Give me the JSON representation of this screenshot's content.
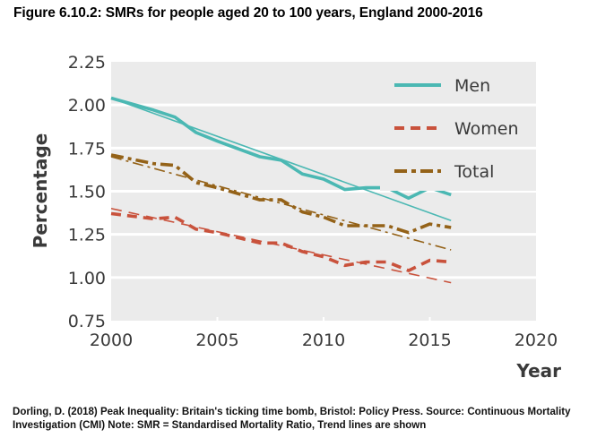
{
  "figure": {
    "title": "Figure 6.10.2: SMRs for people aged 20 to 100 years, England 2000-2016",
    "caption": "Dorling, D. (2018) Peak Inequality: Britain's ticking time bomb, Bristol: Policy Press. Source: Continuous Mortality Investigation (CMI) Note: SMR = Standardised Mortality Ratio, Trend lines are shown"
  },
  "chart_data": {
    "type": "line",
    "title": "Figure 6.10.2: SMRs for people aged 20 to 100 years, England 2000-2016",
    "xlabel": "Year",
    "ylabel": "Percentage",
    "xlim": [
      2000,
      2020
    ],
    "ylim": [
      0.75,
      2.25
    ],
    "xticks": [
      2000,
      2005,
      2010,
      2015,
      2020
    ],
    "xtick_labels": [
      "2000",
      "2005",
      "2010",
      "2015",
      "2020"
    ],
    "yticks": [
      0.75,
      1.0,
      1.25,
      1.5,
      1.75,
      2.0,
      2.25
    ],
    "ytick_labels": [
      "0.75",
      "1.00",
      "1.25",
      "1.50",
      "1.75",
      "2.00",
      "2.25"
    ],
    "grid": "horizontal",
    "legend_position": "top-right",
    "x": [
      2000,
      2002,
      2003,
      2004,
      2005,
      2007,
      2008,
      2009,
      2010,
      2011,
      2012,
      2013,
      2014,
      2015,
      2016
    ],
    "series": [
      {
        "name": "Men",
        "style": "solid",
        "color": "#4bb8b3",
        "values": [
          2.04,
          1.97,
          1.93,
          1.84,
          1.79,
          1.7,
          1.68,
          1.6,
          1.57,
          1.51,
          1.52,
          1.52,
          1.46,
          1.52,
          1.48
        ],
        "trend": {
          "x": [
            2000,
            2016
          ],
          "y": [
            2.04,
            1.33
          ]
        }
      },
      {
        "name": "Women",
        "style": "dashed",
        "color": "#c9523c",
        "values": [
          1.37,
          1.34,
          1.35,
          1.28,
          1.26,
          1.2,
          1.2,
          1.15,
          1.12,
          1.07,
          1.09,
          1.09,
          1.04,
          1.1,
          1.09
        ],
        "trend": {
          "x": [
            2000,
            2016
          ],
          "y": [
            1.4,
            0.97
          ]
        }
      },
      {
        "name": "Total",
        "style": "dash-dot",
        "color": "#946218",
        "values": [
          1.71,
          1.66,
          1.65,
          1.55,
          1.52,
          1.45,
          1.45,
          1.38,
          1.35,
          1.3,
          1.3,
          1.3,
          1.26,
          1.31,
          1.29
        ],
        "trend": {
          "x": [
            2000,
            2016
          ],
          "y": [
            1.7,
            1.16
          ]
        }
      }
    ]
  }
}
